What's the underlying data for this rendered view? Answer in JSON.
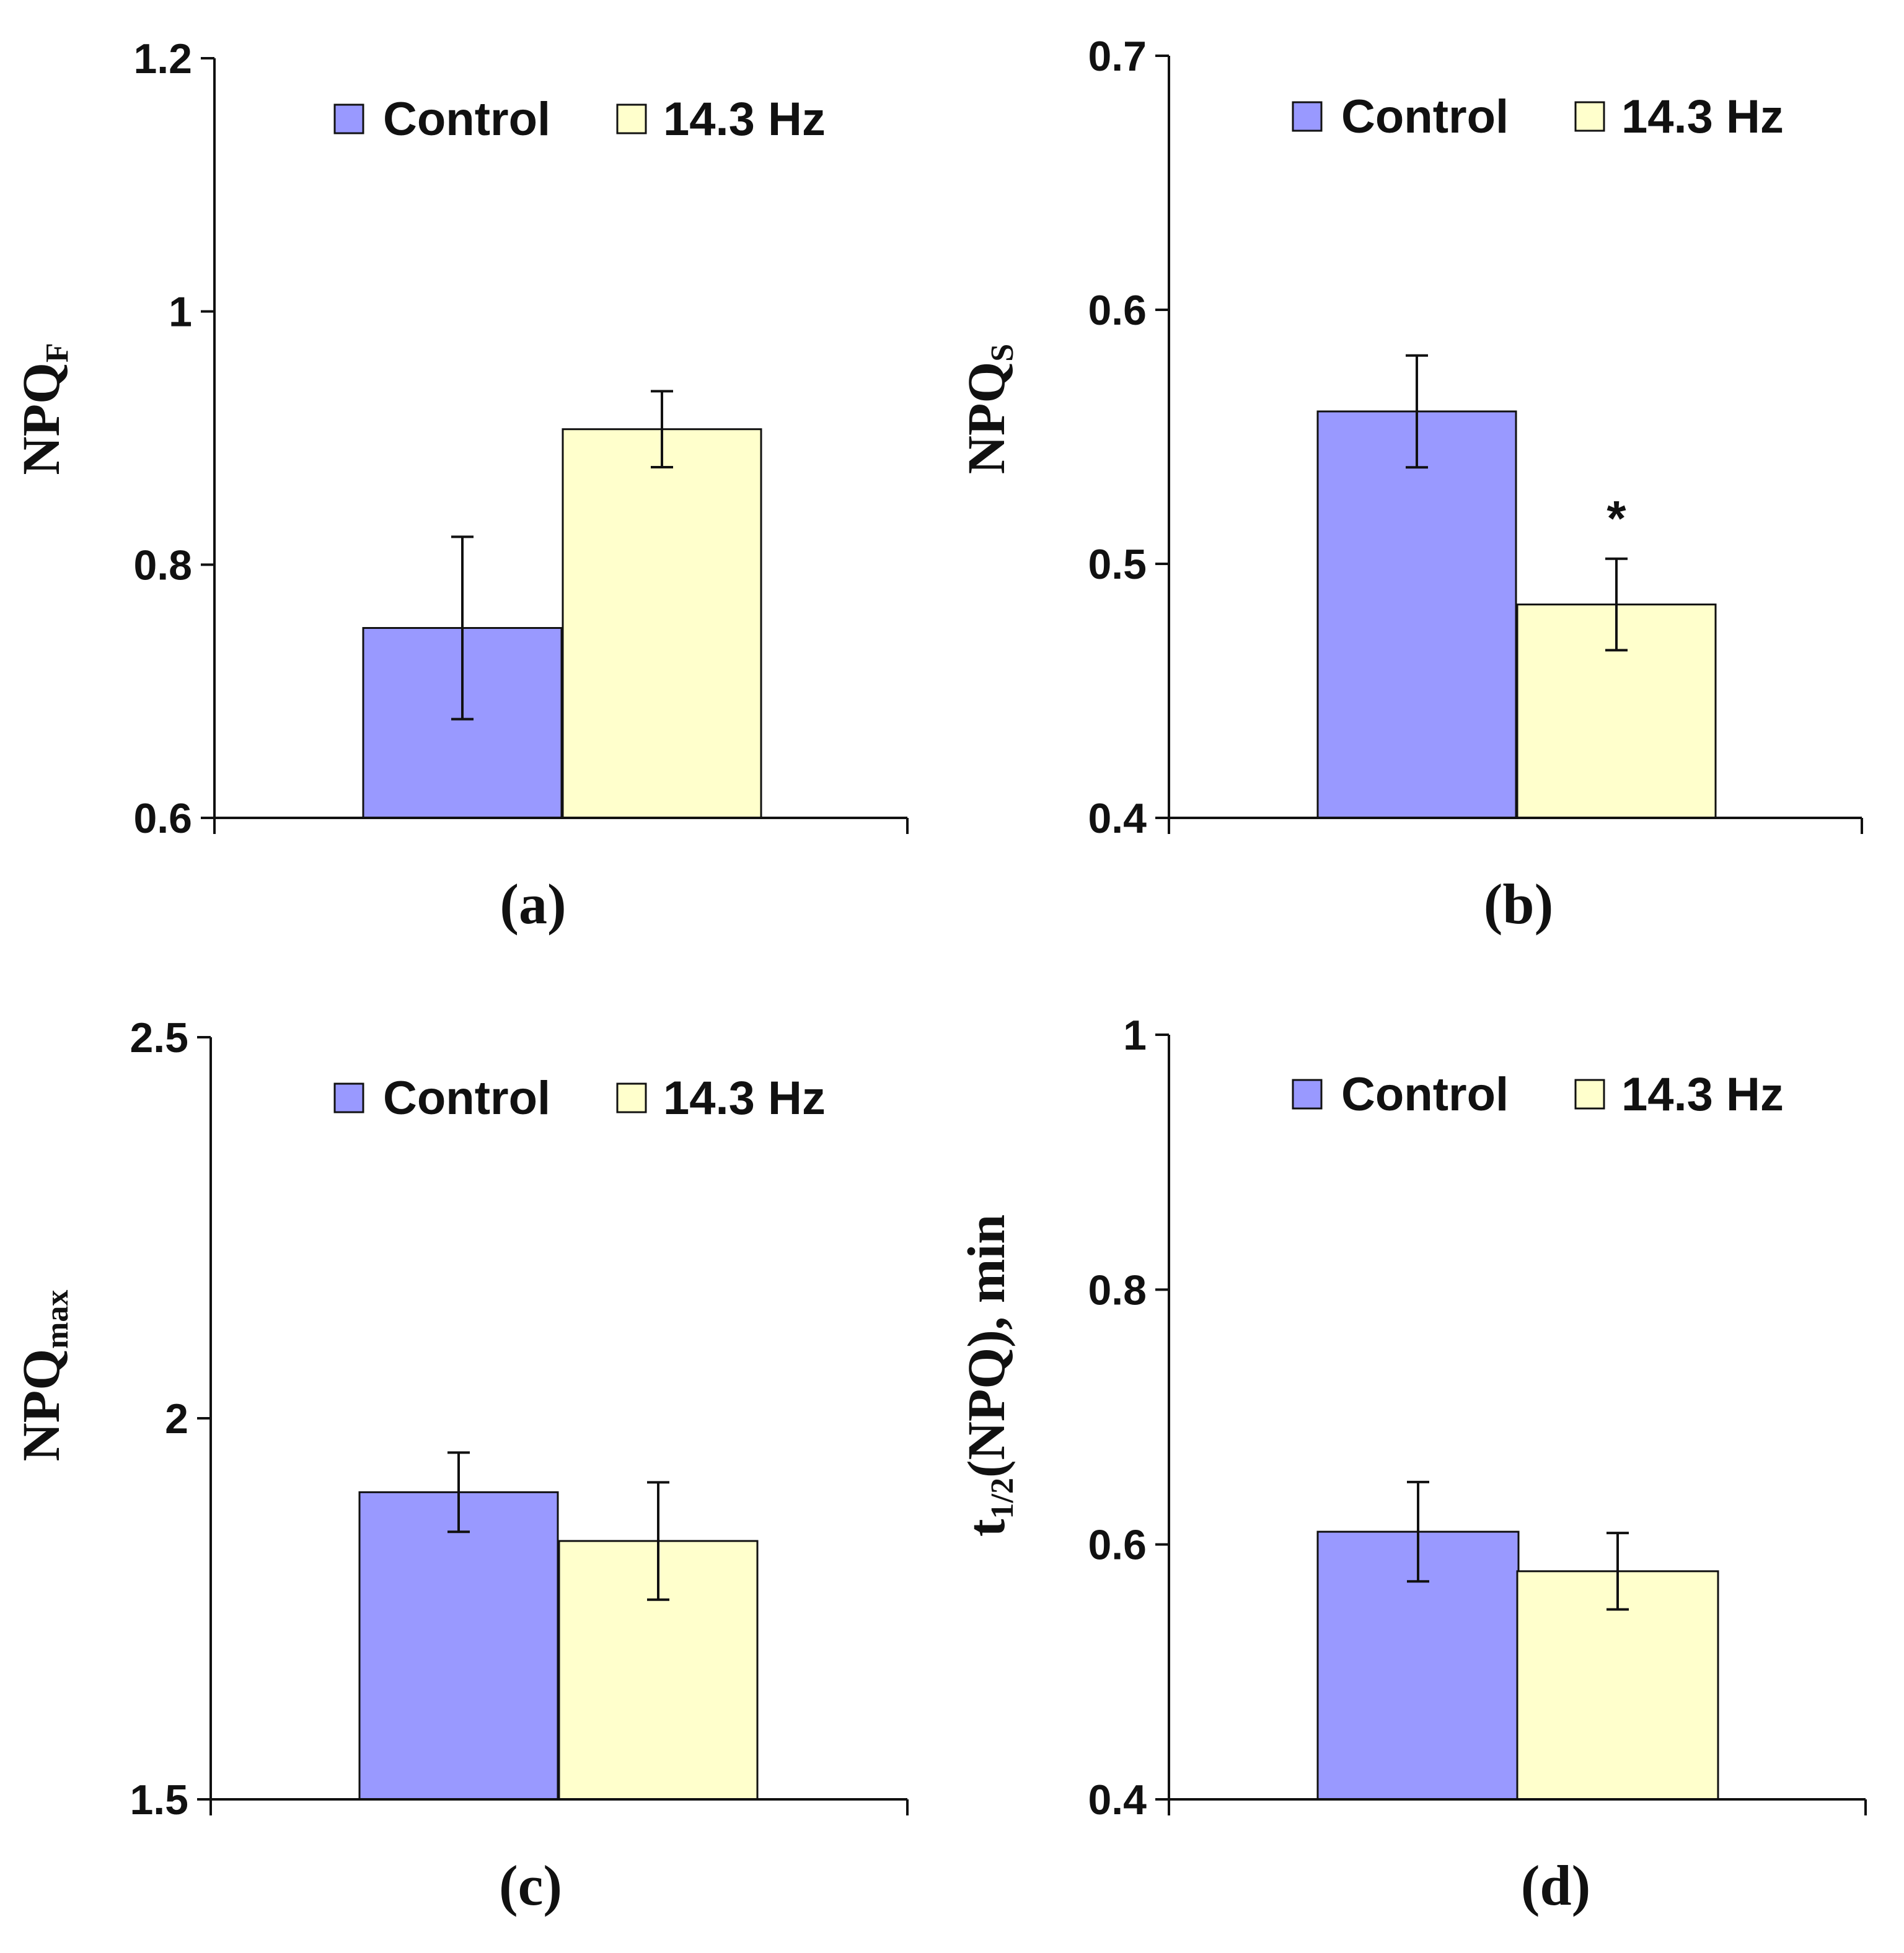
{
  "colors": {
    "control": "#9999ff",
    "treated": "#ffffcc",
    "ink": "#111111"
  },
  "legend": [
    "Control",
    "14.3 Hz"
  ],
  "chart_data": [
    {
      "type": "bar",
      "panel_label": "(a)",
      "ylabel": {
        "main": "NPQ",
        "sub": "F"
      },
      "ylim": [
        0.6,
        1.2
      ],
      "yticks": [
        "0.6",
        "0.8",
        "1",
        "1.2"
      ],
      "legend_position": "top",
      "series": [
        {
          "name": "Control",
          "value": 0.75,
          "error": 0.072
        },
        {
          "name": "14.3 Hz",
          "value": 0.907,
          "error": 0.03
        }
      ],
      "annotations": []
    },
    {
      "type": "bar",
      "panel_label": "(b)",
      "ylabel": {
        "main": "NPQ",
        "sub": "S"
      },
      "ylim": [
        0.4,
        0.7
      ],
      "yticks": [
        "0.4",
        "0.5",
        "0.6",
        "0.7"
      ],
      "legend_position": "top",
      "series": [
        {
          "name": "Control",
          "value": 0.56,
          "error": 0.022
        },
        {
          "name": "14.3 Hz",
          "value": 0.484,
          "error": 0.018
        }
      ],
      "annotations": [
        {
          "text": "*",
          "series": "14.3 Hz"
        }
      ]
    },
    {
      "type": "bar",
      "panel_label": "(c)",
      "ylabel": {
        "main": "NPQ",
        "sub": "max"
      },
      "ylim": [
        1.5,
        2.5
      ],
      "yticks": [
        "1.5",
        "2",
        "2.5"
      ],
      "legend_position": "top",
      "series": [
        {
          "name": "Control",
          "value": 1.903,
          "error": 0.052
        },
        {
          "name": "14.3 Hz",
          "value": 1.839,
          "error": 0.077
        }
      ],
      "annotations": []
    },
    {
      "type": "bar",
      "panel_label": "(d)",
      "ylabel": {
        "main": "t",
        "sub": "1/2",
        "rest": "(NPQ), min"
      },
      "ylim": [
        0.4,
        1.0
      ],
      "yticks": [
        "0.4",
        "0.6",
        "0.8",
        "1"
      ],
      "legend_position": "top",
      "series": [
        {
          "name": "Control",
          "value": 0.61,
          "error": 0.039
        },
        {
          "name": "14.3 Hz",
          "value": 0.579,
          "error": 0.03
        }
      ],
      "annotations": []
    }
  ]
}
